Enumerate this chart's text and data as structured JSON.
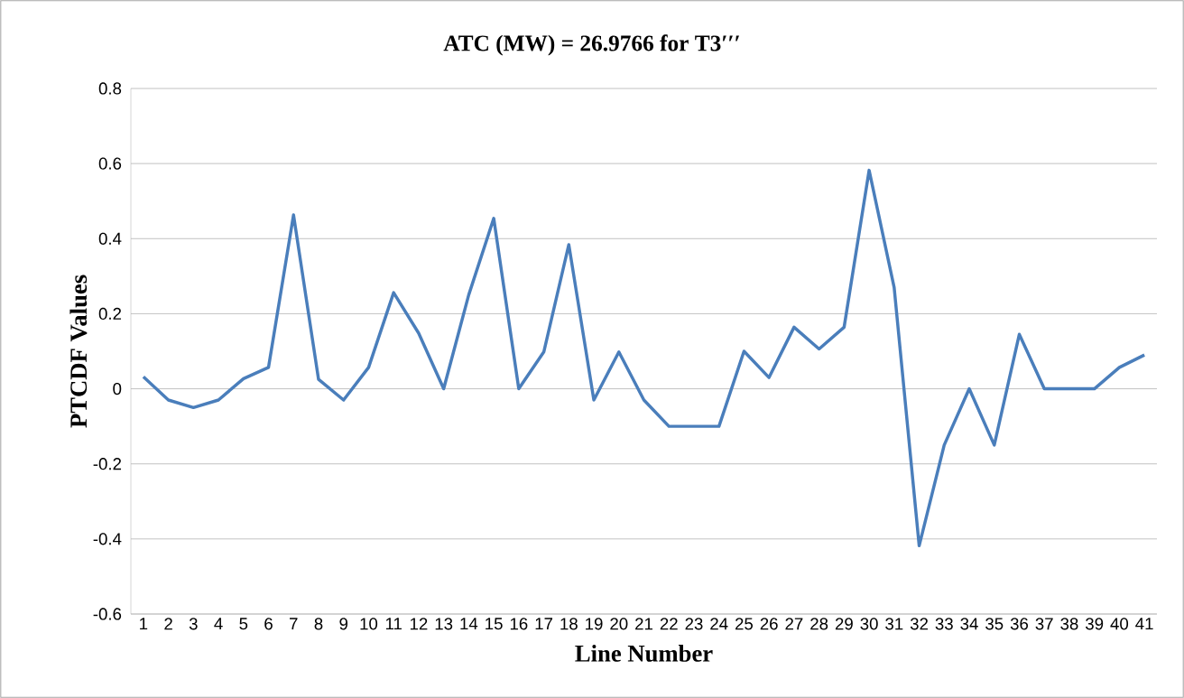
{
  "chart_data": {
    "type": "line",
    "title": "ATC (MW) = 26.9766 for T3′′′",
    "xlabel": "Line Number",
    "ylabel": "PTCDF Values",
    "categories": [
      "1",
      "2",
      "3",
      "4",
      "5",
      "6",
      "7",
      "8",
      "9",
      "10",
      "11",
      "12",
      "13",
      "14",
      "15",
      "16",
      "17",
      "18",
      "19",
      "20",
      "21",
      "22",
      "23",
      "24",
      "25",
      "26",
      "27",
      "28",
      "29",
      "30",
      "31",
      "32",
      "33",
      "34",
      "35",
      "36",
      "37",
      "38",
      "39",
      "40",
      "41"
    ],
    "values": [
      0.032,
      -0.03,
      -0.05,
      -0.03,
      0.027,
      0.057,
      0.463,
      0.025,
      -0.03,
      0.057,
      0.256,
      0.148,
      0,
      0.25,
      0.454,
      0,
      0.098,
      0.384,
      -0.03,
      0.098,
      -0.03,
      -0.1,
      -0.1,
      -0.1,
      0.1,
      0.03,
      0.164,
      0.106,
      0.164,
      0.582,
      0.27,
      -0.418,
      -0.15,
      0,
      -0.15,
      0.145,
      0,
      0,
      0,
      0.057,
      0.09
    ],
    "color": "#4a7ebb",
    "ylim": [
      -0.6,
      0.8
    ],
    "yticks": [
      -0.6,
      -0.4,
      -0.2,
      0,
      0.2,
      0.4,
      0.6,
      0.8
    ],
    "grid": "y",
    "line_style": "solid",
    "marker": "none"
  }
}
